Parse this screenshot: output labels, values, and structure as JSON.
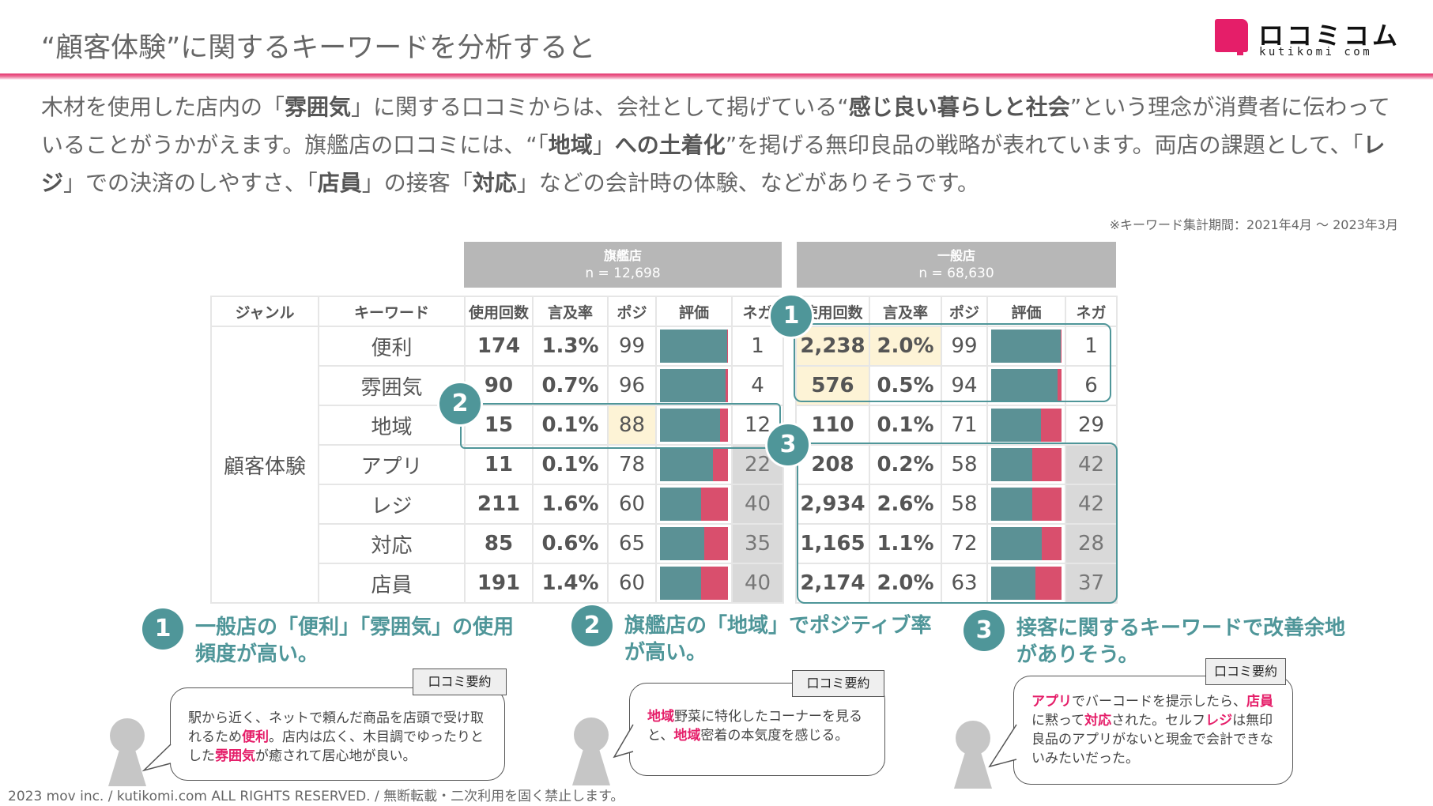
{
  "header": {
    "title": "“顧客体験”に関するキーワードを分析すると",
    "logo_jp": "ロコミコム",
    "logo_en": "kutikomi com",
    "brand_color": "#e51e69"
  },
  "summary": {
    "segments": [
      {
        "t": "木材を使用した店内の「",
        "b": false
      },
      {
        "t": "雰囲気",
        "b": true
      },
      {
        "t": "」に関する口コミからは、会社として掲げている“",
        "b": false
      },
      {
        "t": "感じ良い暮らしと社会",
        "b": true
      },
      {
        "t": "”という理念が消費者に伝わっていることがうかがえます。旗艦店の口コミには、“「",
        "b": false
      },
      {
        "t": "地域",
        "b": true
      },
      {
        "t": "」",
        "b": false
      },
      {
        "t": "への土着化",
        "b": true
      },
      {
        "t": "”を掲げる無印良品の戦略が表れています。両店の課題として、「",
        "b": false
      },
      {
        "t": "レジ",
        "b": true
      },
      {
        "t": "」での決済のしやすさ、「",
        "b": false
      },
      {
        "t": "店員",
        "b": true
      },
      {
        "t": "」の接客「",
        "b": false
      },
      {
        "t": "対応",
        "b": true
      },
      {
        "t": "」などの会計時の体験、などがありそうです。",
        "b": false
      }
    ],
    "note": "※キーワード集計期間：2021年4月 〜 2023年3月"
  },
  "table": {
    "groups": [
      {
        "name": "旗艦店",
        "n": "n = 12,698"
      },
      {
        "name": "一般店",
        "n": "n = 68,630"
      }
    ],
    "columns": {
      "genre": "ジャンル",
      "keyword": "キーワード",
      "count": "使用回数",
      "rate": "言及率",
      "pos": "ポジ",
      "eval": "評価",
      "neg": "ネガ"
    },
    "genre": "顧客体験",
    "rows": [
      {
        "keyword": "便利",
        "flagship": {
          "count": "174",
          "rate": "1.3%",
          "pos": 99,
          "neg": 1
        },
        "general": {
          "count": "2,238",
          "rate": "2.0%",
          "pos": 99,
          "neg": 1
        }
      },
      {
        "keyword": "雰囲気",
        "flagship": {
          "count": "90",
          "rate": "0.7%",
          "pos": 96,
          "neg": 4
        },
        "general": {
          "count": "576",
          "rate": "0.5%",
          "pos": 94,
          "neg": 6
        }
      },
      {
        "keyword": "地域",
        "flagship": {
          "count": "15",
          "rate": "0.1%",
          "pos": 88,
          "neg": 12
        },
        "general": {
          "count": "110",
          "rate": "0.1%",
          "pos": 71,
          "neg": 29
        }
      },
      {
        "keyword": "アプリ",
        "flagship": {
          "count": "11",
          "rate": "0.1%",
          "pos": 78,
          "neg": 22
        },
        "general": {
          "count": "208",
          "rate": "0.2%",
          "pos": 58,
          "neg": 42
        }
      },
      {
        "keyword": "レジ",
        "flagship": {
          "count": "211",
          "rate": "1.6%",
          "pos": 60,
          "neg": 40
        },
        "general": {
          "count": "2,934",
          "rate": "2.6%",
          "pos": 58,
          "neg": 42
        }
      },
      {
        "keyword": "対応",
        "flagship": {
          "count": "85",
          "rate": "0.6%",
          "pos": 65,
          "neg": 35
        },
        "general": {
          "count": "1,165",
          "rate": "1.1%",
          "pos": 72,
          "neg": 28
        }
      },
      {
        "keyword": "店員",
        "flagship": {
          "count": "191",
          "rate": "1.4%",
          "pos": 60,
          "neg": 40
        },
        "general": {
          "count": "2,174",
          "rate": "2.0%",
          "pos": 63,
          "neg": 37
        }
      }
    ],
    "colors": {
      "positive": "#5b9195",
      "negative": "#d94f6d",
      "highlight": "#fdf3d6",
      "shade": "#d9d9d9",
      "accent": "#4f9699"
    }
  },
  "callouts": [
    {
      "num": "1"
    },
    {
      "num": "2"
    },
    {
      "num": "3"
    }
  ],
  "points": [
    {
      "num": "1",
      "heading_line1": "一般店の「便利」「雰囲気」の使用",
      "heading_line2": "頻度が高い。",
      "tag": "口コミ要約",
      "review": [
        {
          "t": "駅から近く、ネットで頼んだ商品を店頭で受け取れるため",
          "h": false
        },
        {
          "t": "便利",
          "h": true
        },
        {
          "t": "。店内は広く、木目調でゆったりとした",
          "h": false
        },
        {
          "t": "雰囲気",
          "h": true
        },
        {
          "t": "が癒されて居心地が良い。",
          "h": false
        }
      ]
    },
    {
      "num": "2",
      "heading_line1": "旗艦店の「地域」でポジティブ率",
      "heading_line2": "が高い。",
      "tag": "口コミ要約",
      "review": [
        {
          "t": "地域",
          "h": true
        },
        {
          "t": "野菜に特化したコーナーを見ると、",
          "h": false
        },
        {
          "t": "地域",
          "h": true
        },
        {
          "t": "密着の本気度を感じる。",
          "h": false
        }
      ]
    },
    {
      "num": "3",
      "heading_line1": "接客に関するキーワードで改善余地",
      "heading_line2": "がありそう。",
      "tag": "口コミ要約",
      "review": [
        {
          "t": "アプリ",
          "h": true
        },
        {
          "t": "でバーコードを提示したら、",
          "h": false
        },
        {
          "t": "店員",
          "h": true
        },
        {
          "t": "に黙って",
          "h": false
        },
        {
          "t": "対応",
          "h": true
        },
        {
          "t": "された。セルフ",
          "h": false
        },
        {
          "t": "レジ",
          "h": true
        },
        {
          "t": "は無印良品のアプリがないと現金で会計できないみたいだった。",
          "h": false
        }
      ]
    }
  ],
  "footer": "2023 mov inc. / kutikomi.com ALL RIGHTS RESERVED. / 無断転載・二次利用を固く禁止します。"
}
